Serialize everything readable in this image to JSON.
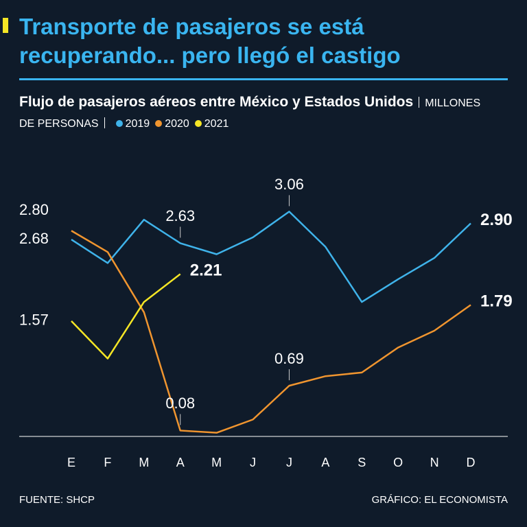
{
  "chart_data": {
    "type": "line",
    "title": [
      "Transporte de pasajeros se está",
      "recuperando... pero llegó el castigo"
    ],
    "subtitle": "Flujo de pasajeros aéreos entre México y Estados Unidos",
    "unit": "MILLONES DE PERSONAS",
    "categories": [
      "E",
      "F",
      "M",
      "A",
      "M",
      "J",
      "J",
      "A",
      "S",
      "O",
      "N",
      "D"
    ],
    "ylim": [
      0,
      3.4
    ],
    "series": [
      {
        "name": "2019",
        "color": "#3fb3ea",
        "values": [
          2.68,
          2.36,
          2.95,
          2.63,
          2.48,
          2.71,
          3.06,
          2.58,
          1.83,
          2.14,
          2.43,
          2.9
        ],
        "value_labels": [
          "2.68",
          null,
          null,
          "2.63",
          null,
          null,
          "3.06",
          null,
          null,
          null,
          null,
          "2.90"
        ]
      },
      {
        "name": "2020",
        "color": "#f0952f",
        "values": [
          2.8,
          2.51,
          1.69,
          0.08,
          0.05,
          0.23,
          0.69,
          0.82,
          0.87,
          1.21,
          1.44,
          1.79
        ],
        "value_labels": [
          "2.80",
          null,
          null,
          "0.08",
          null,
          null,
          "0.69",
          null,
          null,
          null,
          null,
          "1.79"
        ]
      },
      {
        "name": "2021",
        "color": "#f5e625",
        "values": [
          1.57,
          1.06,
          1.83,
          2.21,
          null,
          null,
          null,
          null,
          null,
          null,
          null,
          null
        ],
        "value_labels": [
          "1.57",
          null,
          null,
          "2.21",
          null,
          null,
          null,
          null,
          null,
          null,
          null,
          null
        ]
      }
    ],
    "source": "FUENTE: SHCP",
    "credit": "GRÁFICO: EL ECONOMISTA"
  }
}
